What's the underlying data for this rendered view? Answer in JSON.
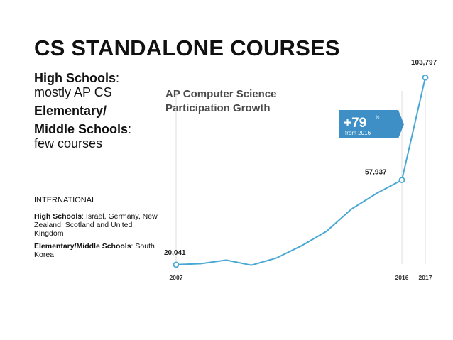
{
  "slide": {
    "title": "CS STANDALONE COURSES",
    "high_schools_label": "High Schools",
    "high_schools_colon": ":",
    "high_schools_desc": "mostly AP CS",
    "elementary_label_1": "Elementary/",
    "elementary_label_2": "Middle Schools",
    "elementary_colon": ":",
    "elementary_desc": "few courses",
    "international_heading": "INTERNATIONAL",
    "intl_hs_label": "High Schools",
    "intl_hs_text": ": Israel, Germany, New Zealand, Scotland and United Kingdom",
    "intl_em_label": "Elementary/Middle Schools",
    "intl_em_text": ": South Korea"
  },
  "chart_data": {
    "type": "line",
    "title_line1": "AP Computer Science",
    "title_line2": "Participation Growth",
    "x": [
      2007,
      2008,
      2009,
      2010,
      2011,
      2012,
      2013,
      2014,
      2015,
      2016,
      2017
    ],
    "values": [
      20041,
      20500,
      22100,
      19800,
      23000,
      28500,
      35000,
      45000,
      52000,
      57937,
      103797
    ],
    "x_tick_labels": [
      "2007",
      "2016",
      "2017"
    ],
    "labeled_points": [
      {
        "x": 2007,
        "label": "20,041"
      },
      {
        "x": 2016,
        "label": "57,937"
      },
      {
        "x": 2017,
        "label": "103,797"
      }
    ],
    "badge": {
      "main": "+79",
      "pct": "%",
      "sub": "from 2016"
    },
    "ylim": [
      13000,
      108000
    ],
    "line_color": "#4aa8d4",
    "badge_color": "#3d8fc6",
    "guide_color": "#dddddd"
  }
}
